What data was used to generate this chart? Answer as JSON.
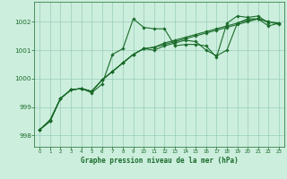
{
  "background_color": "#cceedd",
  "grid_color": "#99ccbb",
  "line_color": "#1a6b2a",
  "xlabel": "Graphe pression niveau de la mer (hPa)",
  "xlim": [
    -0.5,
    23.5
  ],
  "ylim": [
    997.6,
    1002.7
  ],
  "yticks": [
    998,
    999,
    1000,
    1001,
    1002
  ],
  "xticks": [
    0,
    1,
    2,
    3,
    4,
    5,
    6,
    7,
    8,
    9,
    10,
    11,
    12,
    13,
    14,
    15,
    16,
    17,
    18,
    19,
    20,
    21,
    22,
    23
  ],
  "series": [
    {
      "x": [
        0,
        1,
        2,
        3,
        4,
        5,
        6,
        7,
        8,
        9,
        10,
        11,
        12,
        13,
        14,
        15,
        16,
        17,
        18,
        19,
        20,
        21,
        22
      ],
      "y": [
        998.2,
        998.55,
        999.3,
        999.6,
        999.65,
        999.5,
        999.8,
        1000.85,
        1001.05,
        1002.1,
        1001.8,
        1001.75,
        1001.75,
        1001.15,
        1001.2,
        1001.2,
        1001.15,
        1000.75,
        1001.95,
        1002.2,
        1002.15,
        1002.2,
        1001.95
      ]
    },
    {
      "x": [
        0,
        1,
        2,
        3,
        4,
        5,
        6,
        7,
        8,
        9,
        10,
        11,
        12,
        13,
        14,
        15,
        16,
        17,
        18,
        19,
        20,
        21,
        22,
        23
      ],
      "y": [
        998.2,
        998.5,
        999.3,
        999.6,
        999.65,
        999.55,
        999.95,
        1000.25,
        1000.55,
        1000.85,
        1001.05,
        1001.1,
        1001.25,
        1001.35,
        1001.45,
        1001.55,
        1001.65,
        1001.75,
        1001.85,
        1001.95,
        1002.05,
        1002.1,
        1002.0,
        1001.95
      ]
    },
    {
      "x": [
        0,
        1,
        2,
        3,
        4,
        5,
        6,
        7,
        8,
        9,
        10,
        11,
        12,
        13,
        14,
        15,
        16,
        17,
        18,
        19,
        20,
        21,
        22,
        23
      ],
      "y": [
        998.2,
        998.5,
        999.3,
        999.6,
        999.65,
        999.55,
        999.95,
        1000.25,
        1000.55,
        1000.85,
        1001.05,
        1001.1,
        1001.2,
        1001.3,
        1001.4,
        1001.5,
        1001.6,
        1001.7,
        1001.8,
        1001.9,
        1002.0,
        1002.1,
        1002.0,
        1001.9
      ]
    },
    {
      "x": [
        0,
        1,
        2,
        3,
        4,
        5,
        6,
        7,
        8,
        9,
        10,
        11,
        12,
        13,
        14,
        15,
        16,
        17,
        18,
        19,
        20,
        21,
        22,
        23
      ],
      "y": [
        998.2,
        998.5,
        999.3,
        999.6,
        999.65,
        999.55,
        999.95,
        1000.25,
        1000.55,
        1000.85,
        1001.05,
        1001.0,
        1001.15,
        1001.25,
        1001.35,
        1001.3,
        1001.0,
        1000.8,
        1001.0,
        1001.95,
        1002.1,
        1002.1,
        1001.85,
        1001.95
      ]
    }
  ],
  "marker": "D",
  "markersize": 1.8,
  "linewidth": 0.8
}
